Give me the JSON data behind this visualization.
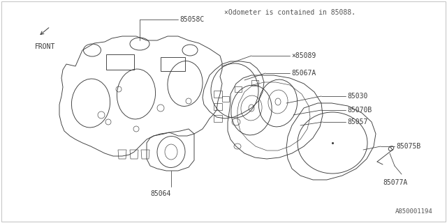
{
  "bg_color": "#ffffff",
  "line_color": "#3a3a3a",
  "text_color": "#3a3a3a",
  "title_note": "×Odometer is contained in 85088.",
  "footer": "A850001194",
  "front_label": "FRONT",
  "figsize": [
    6.4,
    3.2
  ],
  "dpi": 100
}
